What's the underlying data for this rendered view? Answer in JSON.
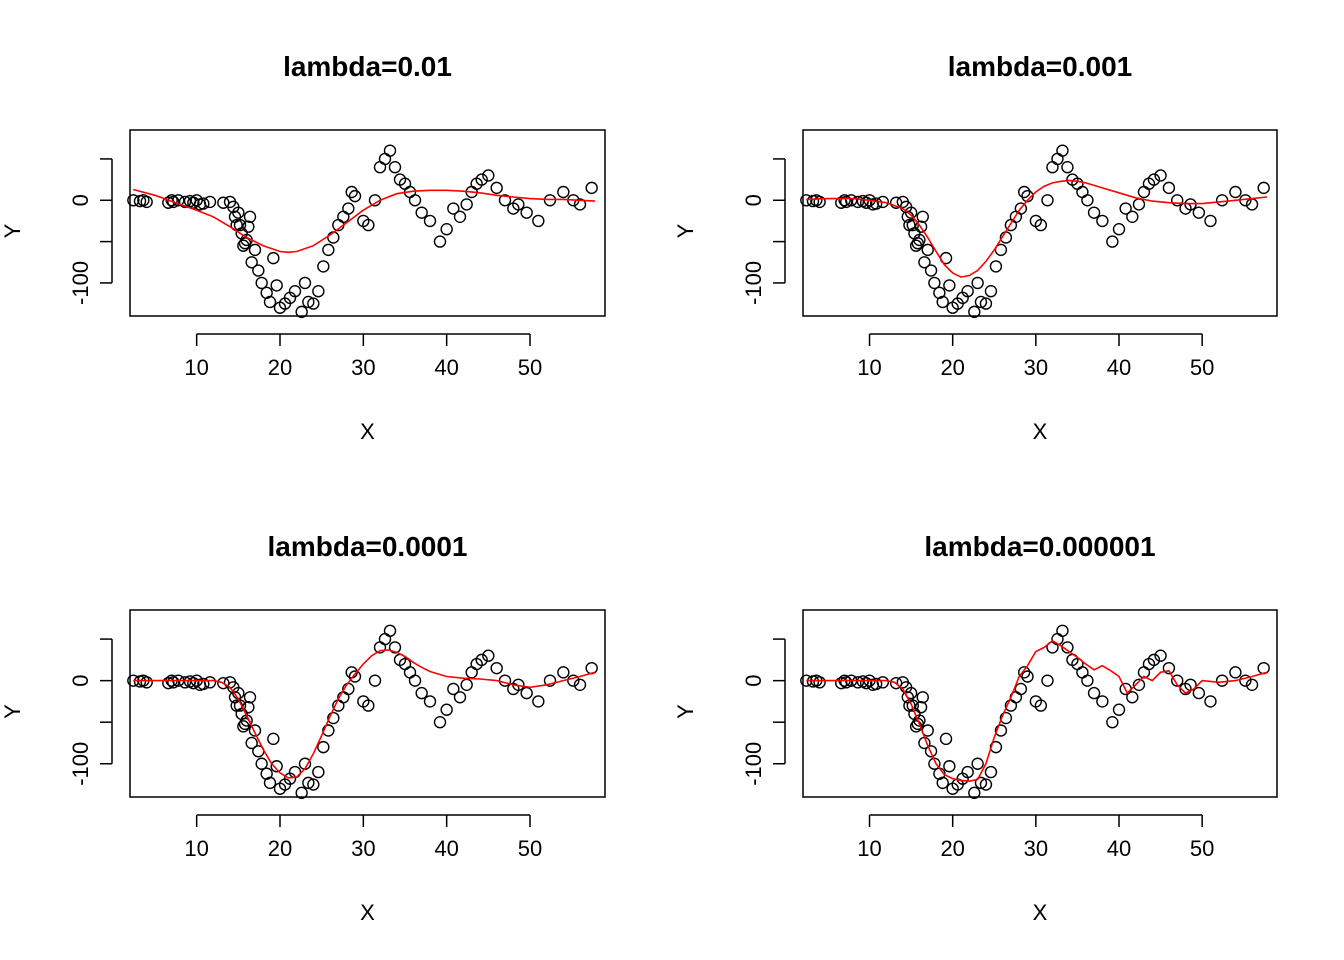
{
  "chart_data": [
    {
      "type": "scatter",
      "title": "lambda=0.01",
      "xlabel": "X",
      "ylabel": "Y",
      "xlim": [
        2,
        59
      ],
      "ylim": [
        -140,
        85
      ],
      "xticks": [
        10,
        20,
        30,
        40,
        50
      ],
      "yticks": [
        -100,
        0
      ],
      "series": [
        {
          "name": "data",
          "kind": "points",
          "color": "#000000",
          "x": [
            2.4,
            3.2,
            3.6,
            4.0,
            6.6,
            7.0,
            7.2,
            7.8,
            8.6,
            9.2,
            9.6,
            10.0,
            10.4,
            10.8,
            11.6,
            13.2,
            14.0,
            14.4,
            14.6,
            14.8,
            15.0,
            15.2,
            15.4,
            15.6,
            15.8,
            16.0,
            16.2,
            16.4,
            16.6,
            17.0,
            17.4,
            17.8,
            18.4,
            18.8,
            19.2,
            19.6,
            20.0,
            20.6,
            21.2,
            21.8,
            22.6,
            23.0,
            23.4,
            24.0,
            24.6,
            25.2,
            25.8,
            26.4,
            27.0,
            27.6,
            28.2,
            28.6,
            29.0,
            30.0,
            30.6,
            31.4,
            32.0,
            32.6,
            33.2,
            33.8,
            34.4,
            35.0,
            35.6,
            36.2,
            37.0,
            38.0,
            39.2,
            40.0,
            40.8,
            41.6,
            42.4,
            43.0,
            43.6,
            44.2,
            45.0,
            46.0,
            47.0,
            48.0,
            48.6,
            49.6,
            51.0,
            52.4,
            54.0,
            55.2,
            56.0,
            57.4
          ],
          "y": [
            0,
            -1,
            0,
            -2,
            -3,
            0,
            -2,
            0,
            -2,
            -1,
            -3,
            0,
            -5,
            -4,
            -2,
            -3,
            -2,
            -8,
            -20,
            -30,
            -15,
            -30,
            -40,
            -55,
            -52,
            -48,
            -32,
            -20,
            -75,
            -60,
            -85,
            -100,
            -112,
            -123,
            -70,
            -103,
            -130,
            -125,
            -118,
            -110,
            -135,
            -100,
            -123,
            -125,
            -110,
            -80,
            -60,
            -45,
            -30,
            -20,
            -10,
            10,
            5,
            -25,
            -30,
            0,
            40,
            50,
            60,
            40,
            25,
            20,
            10,
            0,
            -15,
            -25,
            -50,
            -35,
            -10,
            -20,
            -5,
            10,
            20,
            25,
            30,
            15,
            0,
            -10,
            -5,
            -15,
            -25,
            0,
            10,
            0,
            -5,
            15
          ]
        }
      ]
    },
    {
      "type": "scatter",
      "title": "lambda=0.001",
      "xlabel": "X",
      "ylabel": "Y",
      "xlim": [
        2,
        59
      ],
      "ylim": [
        -140,
        85
      ],
      "xticks": [
        10,
        20,
        30,
        40,
        50
      ],
      "yticks": [
        -100,
        0
      ],
      "series": [
        {
          "name": "data",
          "kind": "points",
          "color": "#000000",
          "x": [
            2.4,
            3.2,
            3.6,
            4.0,
            6.6,
            7.0,
            7.2,
            7.8,
            8.6,
            9.2,
            9.6,
            10.0,
            10.4,
            10.8,
            11.6,
            13.2,
            14.0,
            14.4,
            14.6,
            14.8,
            15.0,
            15.2,
            15.4,
            15.6,
            15.8,
            16.0,
            16.2,
            16.4,
            16.6,
            17.0,
            17.4,
            17.8,
            18.4,
            18.8,
            19.2,
            19.6,
            20.0,
            20.6,
            21.2,
            21.8,
            22.6,
            23.0,
            23.4,
            24.0,
            24.6,
            25.2,
            25.8,
            26.4,
            27.0,
            27.6,
            28.2,
            28.6,
            29.0,
            30.0,
            30.6,
            31.4,
            32.0,
            32.6,
            33.2,
            33.8,
            34.4,
            35.0,
            35.6,
            36.2,
            37.0,
            38.0,
            39.2,
            40.0,
            40.8,
            41.6,
            42.4,
            43.0,
            43.6,
            44.2,
            45.0,
            46.0,
            47.0,
            48.0,
            48.6,
            49.6,
            51.0,
            52.4,
            54.0,
            55.2,
            56.0,
            57.4
          ],
          "y": [
            0,
            -1,
            0,
            -2,
            -3,
            0,
            -2,
            0,
            -2,
            -1,
            -3,
            0,
            -5,
            -4,
            -2,
            -3,
            -2,
            -8,
            -20,
            -30,
            -15,
            -30,
            -40,
            -55,
            -52,
            -48,
            -32,
            -20,
            -75,
            -60,
            -85,
            -100,
            -112,
            -123,
            -70,
            -103,
            -130,
            -125,
            -118,
            -110,
            -135,
            -100,
            -123,
            -125,
            -110,
            -80,
            -60,
            -45,
            -30,
            -20,
            -10,
            10,
            5,
            -25,
            -30,
            0,
            40,
            50,
            60,
            40,
            25,
            20,
            10,
            0,
            -15,
            -25,
            -50,
            -35,
            -10,
            -20,
            -5,
            10,
            20,
            25,
            30,
            15,
            0,
            -10,
            -5,
            -15,
            -25,
            0,
            10,
            0,
            -5,
            15
          ]
        }
      ]
    },
    {
      "type": "scatter",
      "title": "lambda=0.0001",
      "xlabel": "X",
      "ylabel": "Y",
      "xlim": [
        2,
        59
      ],
      "ylim": [
        -140,
        85
      ],
      "xticks": [
        10,
        20,
        30,
        40,
        50
      ],
      "yticks": [
        -100,
        0
      ],
      "series": [
        {
          "name": "data",
          "kind": "points",
          "color": "#000000",
          "x": [
            2.4,
            3.2,
            3.6,
            4.0,
            6.6,
            7.0,
            7.2,
            7.8,
            8.6,
            9.2,
            9.6,
            10.0,
            10.4,
            10.8,
            11.6,
            13.2,
            14.0,
            14.4,
            14.6,
            14.8,
            15.0,
            15.2,
            15.4,
            15.6,
            15.8,
            16.0,
            16.2,
            16.4,
            16.6,
            17.0,
            17.4,
            17.8,
            18.4,
            18.8,
            19.2,
            19.6,
            20.0,
            20.6,
            21.2,
            21.8,
            22.6,
            23.0,
            23.4,
            24.0,
            24.6,
            25.2,
            25.8,
            26.4,
            27.0,
            27.6,
            28.2,
            28.6,
            29.0,
            30.0,
            30.6,
            31.4,
            32.0,
            32.6,
            33.2,
            33.8,
            34.4,
            35.0,
            35.6,
            36.2,
            37.0,
            38.0,
            39.2,
            40.0,
            40.8,
            41.6,
            42.4,
            43.0,
            43.6,
            44.2,
            45.0,
            46.0,
            47.0,
            48.0,
            48.6,
            49.6,
            51.0,
            52.4,
            54.0,
            55.2,
            56.0,
            57.4
          ],
          "y": [
            0,
            -1,
            0,
            -2,
            -3,
            0,
            -2,
            0,
            -2,
            -1,
            -3,
            0,
            -5,
            -4,
            -2,
            -3,
            -2,
            -8,
            -20,
            -30,
            -15,
            -30,
            -40,
            -55,
            -52,
            -48,
            -32,
            -20,
            -75,
            -60,
            -85,
            -100,
            -112,
            -123,
            -70,
            -103,
            -130,
            -125,
            -118,
            -110,
            -135,
            -100,
            -123,
            -125,
            -110,
            -80,
            -60,
            -45,
            -30,
            -20,
            -10,
            10,
            5,
            -25,
            -30,
            0,
            40,
            50,
            60,
            40,
            25,
            20,
            10,
            0,
            -15,
            -25,
            -50,
            -35,
            -10,
            -20,
            -5,
            10,
            20,
            25,
            30,
            15,
            0,
            -10,
            -5,
            -15,
            -25,
            0,
            10,
            0,
            -5,
            15
          ]
        }
      ]
    },
    {
      "type": "scatter",
      "title": "lambda=0.000001",
      "xlabel": "X",
      "ylabel": "Y",
      "xlim": [
        2,
        59
      ],
      "ylim": [
        -140,
        85
      ],
      "xticks": [
        10,
        20,
        30,
        40,
        50
      ],
      "yticks": [
        -100,
        0
      ],
      "series": [
        {
          "name": "data",
          "kind": "points",
          "color": "#000000",
          "x": [
            2.4,
            3.2,
            3.6,
            4.0,
            6.6,
            7.0,
            7.2,
            7.8,
            8.6,
            9.2,
            9.6,
            10.0,
            10.4,
            10.8,
            11.6,
            13.2,
            14.0,
            14.4,
            14.6,
            14.8,
            15.0,
            15.2,
            15.4,
            15.6,
            15.8,
            16.0,
            16.2,
            16.4,
            16.6,
            17.0,
            17.4,
            17.8,
            18.4,
            18.8,
            19.2,
            19.6,
            20.0,
            20.6,
            21.2,
            21.8,
            22.6,
            23.0,
            23.4,
            24.0,
            24.6,
            25.2,
            25.8,
            26.4,
            27.0,
            27.6,
            28.2,
            28.6,
            29.0,
            30.0,
            30.6,
            31.4,
            32.0,
            32.6,
            33.2,
            33.8,
            34.4,
            35.0,
            35.6,
            36.2,
            37.0,
            38.0,
            39.2,
            40.0,
            40.8,
            41.6,
            42.4,
            43.0,
            43.6,
            44.2,
            45.0,
            46.0,
            47.0,
            48.0,
            48.6,
            49.6,
            51.0,
            52.4,
            54.0,
            55.2,
            56.0,
            57.4
          ],
          "y": [
            0,
            -1,
            0,
            -2,
            -3,
            0,
            -2,
            0,
            -2,
            -1,
            -3,
            0,
            -5,
            -4,
            -2,
            -3,
            -2,
            -8,
            -20,
            -30,
            -15,
            -30,
            -40,
            -55,
            -52,
            -48,
            -32,
            -20,
            -75,
            -60,
            -85,
            -100,
            -112,
            -123,
            -70,
            -103,
            -130,
            -125,
            -118,
            -110,
            -135,
            -100,
            -123,
            -125,
            -110,
            -80,
            -60,
            -45,
            -30,
            -20,
            -10,
            10,
            5,
            -25,
            -30,
            0,
            40,
            50,
            60,
            40,
            25,
            20,
            10,
            0,
            -15,
            -25,
            -50,
            -35,
            -10,
            -20,
            -5,
            10,
            20,
            25,
            30,
            15,
            0,
            -10,
            -5,
            -15,
            -25,
            0,
            10,
            0,
            -5,
            15
          ]
        }
      ]
    }
  ],
  "fits": [
    {
      "color": "#ff0000",
      "x": [
        2.4,
        5,
        8,
        10,
        12,
        14,
        16,
        18,
        20,
        21,
        22,
        24,
        26,
        28,
        30,
        32,
        34,
        36,
        38,
        40,
        42,
        44,
        46,
        48,
        50,
        52,
        54,
        56,
        57.8
      ],
      "y": [
        13,
        6,
        -5,
        -12,
        -20,
        -32,
        -45,
        -55,
        -62,
        -63,
        -62,
        -55,
        -42,
        -27,
        -12,
        0,
        8,
        11,
        12,
        12,
        11,
        9,
        6,
        4,
        2,
        1,
        1,
        0,
        -1
      ]
    },
    {
      "color": "#ff0000",
      "x": [
        2.4,
        5,
        8,
        10,
        12,
        14,
        15,
        16,
        17,
        18,
        19,
        20,
        21,
        22,
        23,
        24,
        25,
        26,
        27,
        28,
        29,
        30,
        31,
        32,
        33,
        34,
        35,
        36,
        37,
        38,
        40,
        42,
        44,
        46,
        48,
        50,
        52,
        54,
        56,
        57.8
      ],
      "y": [
        1,
        2,
        2,
        0,
        -3,
        -10,
        -18,
        -30,
        -45,
        -62,
        -78,
        -88,
        -93,
        -91,
        -85,
        -74,
        -60,
        -44,
        -28,
        -12,
        0,
        10,
        17,
        21,
        23,
        24,
        23,
        21,
        18,
        15,
        9,
        3,
        -1,
        -3,
        -4,
        -4,
        -2,
        0,
        2,
        4
      ]
    },
    {
      "color": "#ff0000",
      "x": [
        2.4,
        5,
        8,
        10,
        12,
        13,
        14,
        15,
        16,
        17,
        18,
        19,
        20,
        21,
        22,
        23,
        24,
        25,
        26,
        27,
        28,
        29,
        30,
        31,
        32,
        33,
        34,
        35,
        36,
        37,
        38,
        39,
        40,
        42,
        44,
        46,
        48,
        50,
        52,
        54,
        56,
        57.8
      ],
      "y": [
        0,
        0,
        0,
        0,
        0,
        -2,
        -8,
        -22,
        -42,
        -63,
        -83,
        -100,
        -111,
        -117,
        -116,
        -106,
        -88,
        -66,
        -43,
        -22,
        -5,
        8,
        20,
        30,
        36,
        37,
        34,
        29,
        22,
        16,
        11,
        8,
        5,
        3,
        2,
        0,
        -5,
        -8,
        -5,
        0,
        5,
        10
      ]
    },
    {
      "color": "#ff0000",
      "x": [
        2.4,
        5,
        8,
        10,
        12,
        13,
        14,
        15,
        16,
        17,
        18,
        19,
        20,
        21,
        22,
        23,
        24,
        25,
        26,
        27,
        28,
        29,
        30,
        31,
        32,
        33,
        34,
        35,
        36,
        37,
        38,
        39,
        40,
        41,
        42,
        43,
        44,
        45,
        46,
        47,
        48,
        49,
        50,
        52,
        54,
        56,
        57.8
      ],
      "y": [
        0,
        0,
        0,
        0,
        0,
        -2,
        -10,
        -28,
        -52,
        -78,
        -100,
        -113,
        -118,
        -120,
        -121,
        -119,
        -100,
        -68,
        -42,
        -20,
        5,
        18,
        35,
        40,
        48,
        42,
        35,
        28,
        20,
        13,
        18,
        12,
        5,
        -15,
        -5,
        5,
        0,
        10,
        12,
        -5,
        -15,
        -10,
        0,
        -2,
        0,
        5,
        10
      ]
    }
  ]
}
